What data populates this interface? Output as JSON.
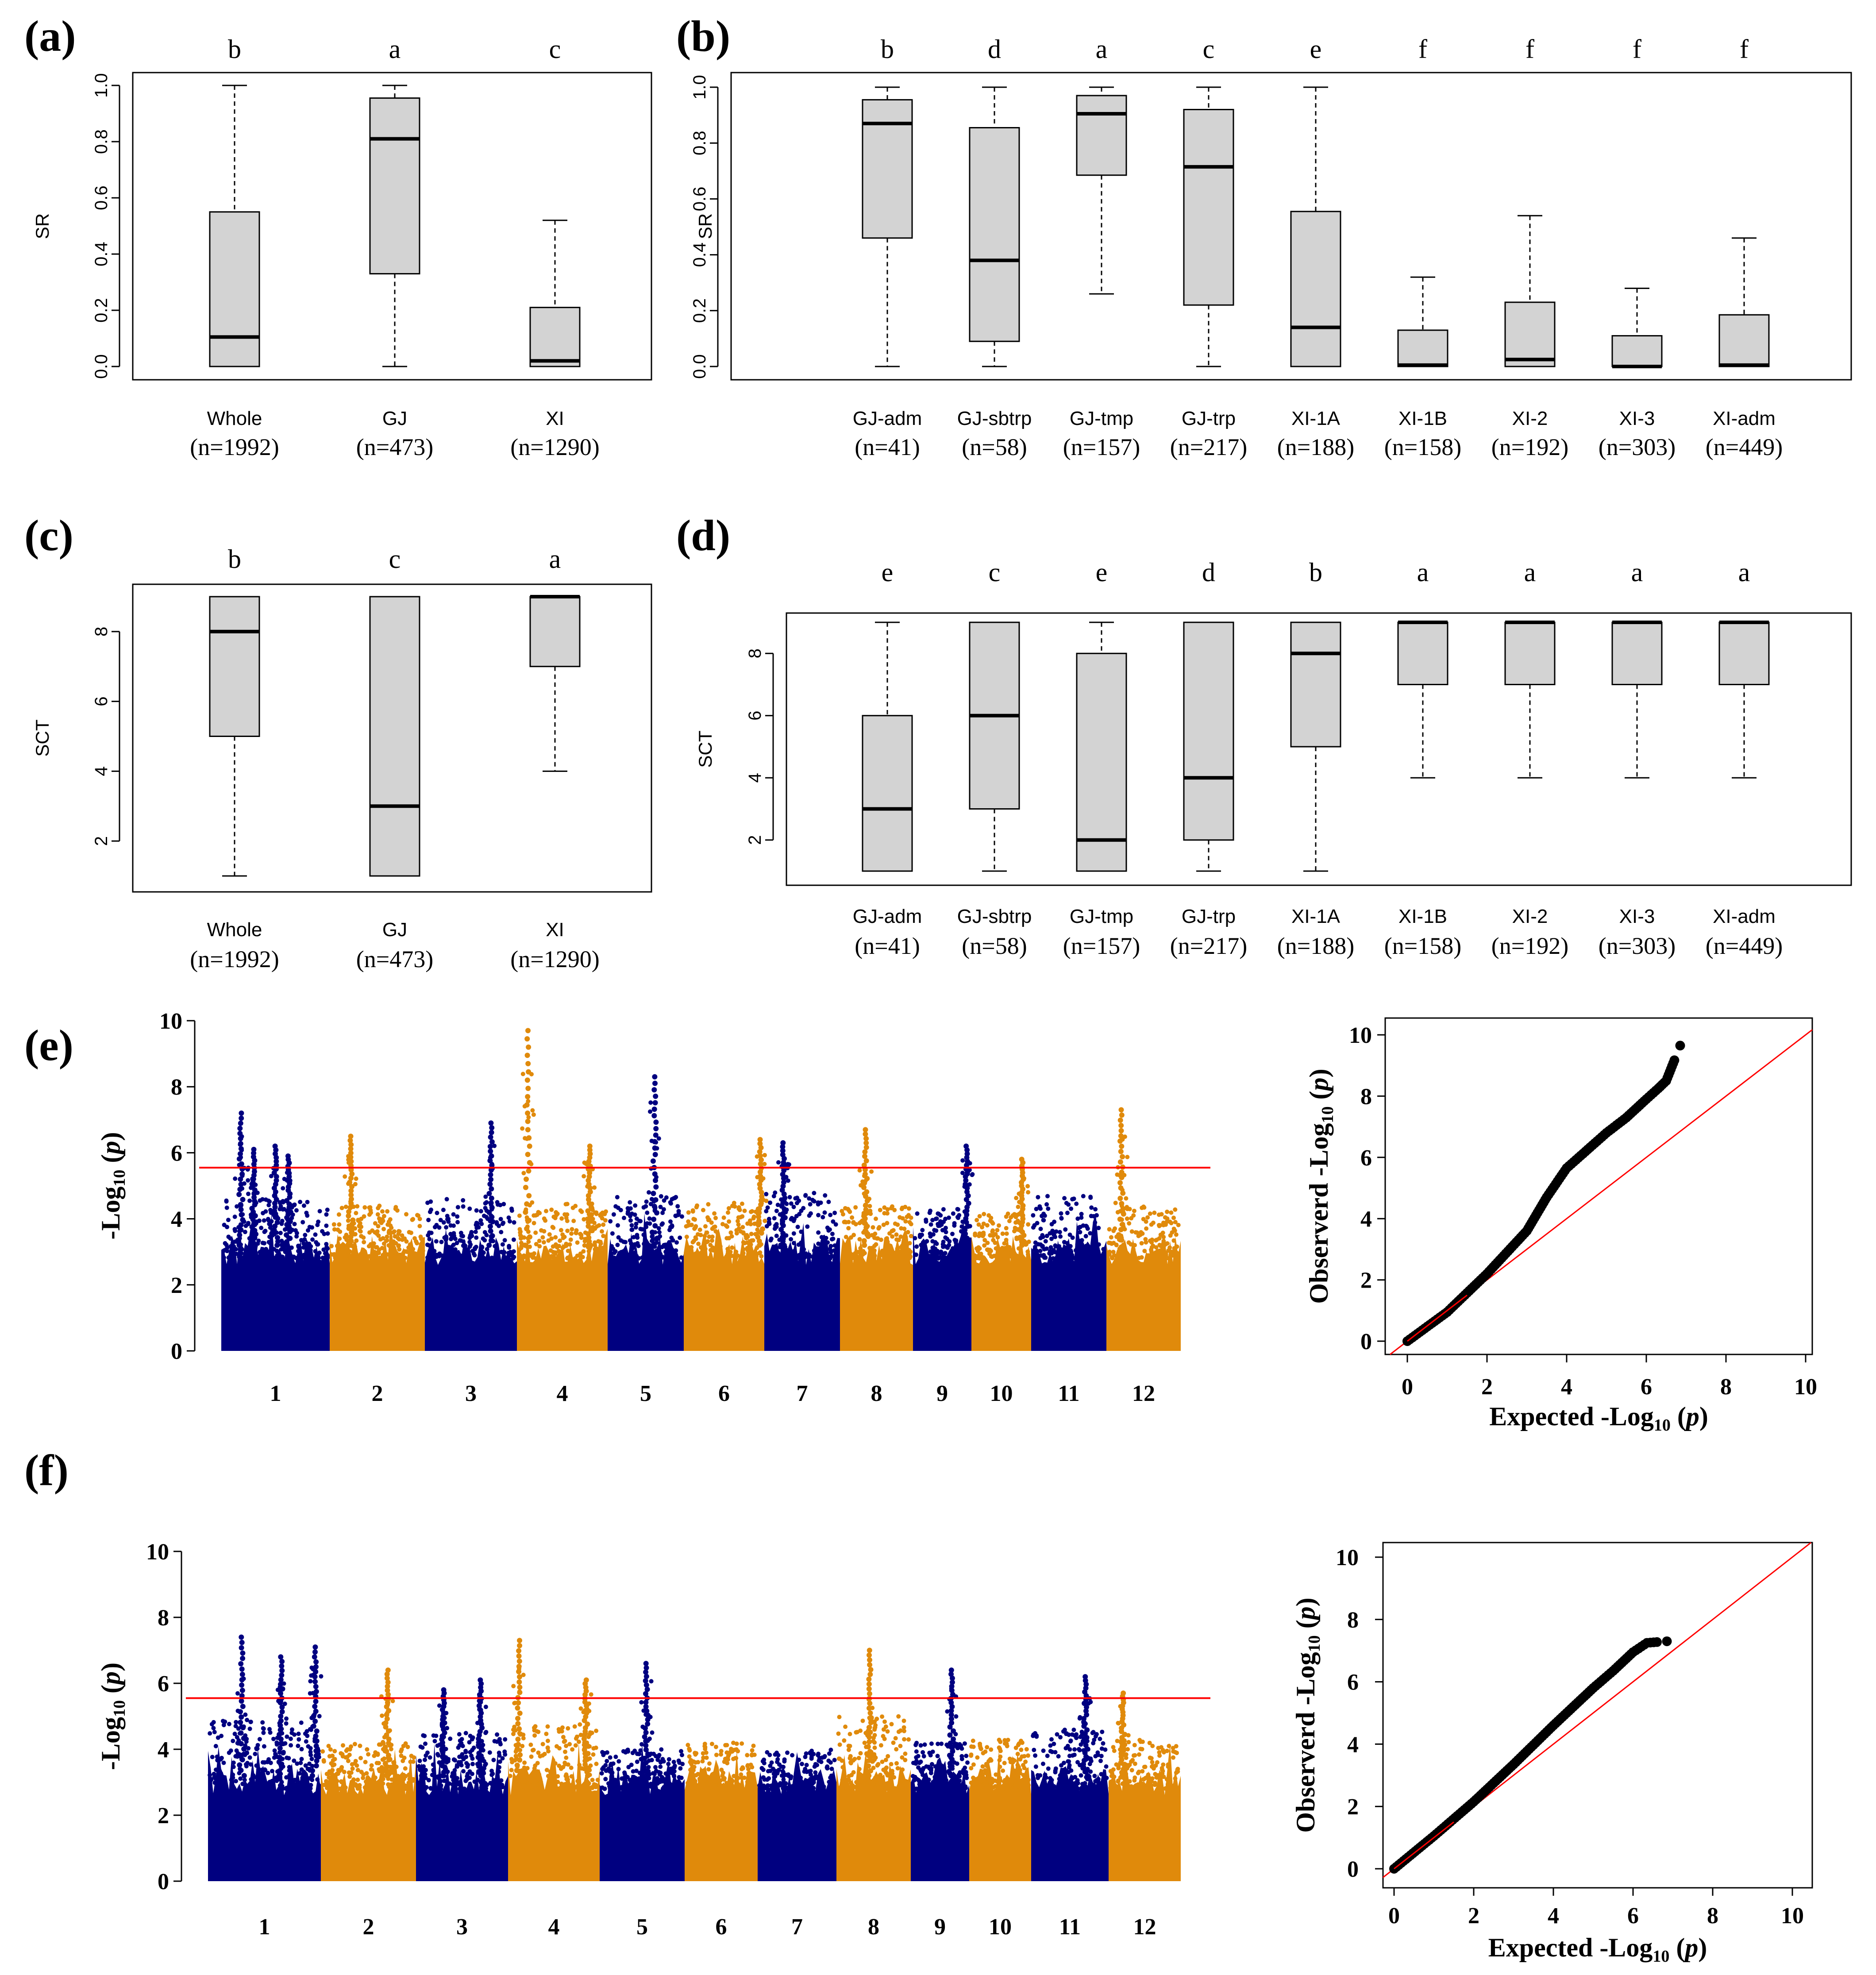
{
  "chart_data": [
    {
      "panel": "(a)",
      "type": "boxplot",
      "ylabel": "SR",
      "ylim": [
        0,
        1
      ],
      "yticks": [
        "0.0",
        "0.2",
        "0.4",
        "0.6",
        "0.8",
        "1.0"
      ],
      "categories": [
        "Whole",
        "GJ",
        "XI"
      ],
      "n_labels": [
        "(n=1992)",
        "(n=473)",
        "(n=1290)"
      ],
      "sig": [
        "b",
        "a",
        "c"
      ],
      "boxes": [
        {
          "low": 0.0,
          "q1": 0.0,
          "median": 0.105,
          "q3": 0.55,
          "high": 1.0
        },
        {
          "low": 0.0,
          "q1": 0.33,
          "median": 0.81,
          "q3": 0.955,
          "high": 1.0
        },
        {
          "low": 0.0,
          "q1": 0.0,
          "median": 0.02,
          "q3": 0.21,
          "high": 0.52
        }
      ]
    },
    {
      "panel": "(b)",
      "type": "boxplot",
      "ylabel": "SR",
      "ylim": [
        0,
        1
      ],
      "yticks": [
        "0.0",
        "0.2",
        "0.4",
        "0.6",
        "0.8",
        "1.0"
      ],
      "categories": [
        "GJ-adm",
        "GJ-sbtrp",
        "GJ-tmp",
        "GJ-trp",
        "XI-1A",
        "XI-1B",
        "XI-2",
        "XI-3",
        "XI-adm"
      ],
      "n_labels": [
        "(n=41)",
        "(n=58)",
        "(n=157)",
        "(n=217)",
        "(n=188)",
        "(n=158)",
        "(n=192)",
        "(n=303)",
        "(n=449)"
      ],
      "sig": [
        "b",
        "d",
        "a",
        "c",
        "e",
        "f",
        "f",
        "f",
        "f"
      ],
      "boxes": [
        {
          "low": 0.0,
          "q1": 0.46,
          "median": 0.87,
          "q3": 0.955,
          "high": 1.0
        },
        {
          "low": 0.0,
          "q1": 0.09,
          "median": 0.38,
          "q3": 0.855,
          "high": 1.0
        },
        {
          "low": 0.26,
          "q1": 0.685,
          "median": 0.905,
          "q3": 0.97,
          "high": 1.0
        },
        {
          "low": 0.0,
          "q1": 0.22,
          "median": 0.715,
          "q3": 0.92,
          "high": 1.0
        },
        {
          "low": 0.0,
          "q1": 0.0,
          "median": 0.14,
          "q3": 0.555,
          "high": 1.0
        },
        {
          "low": 0.0,
          "q1": 0.0,
          "median": 0.005,
          "q3": 0.13,
          "high": 0.32
        },
        {
          "low": 0.0,
          "q1": 0.0,
          "median": 0.025,
          "q3": 0.23,
          "high": 0.54
        },
        {
          "low": 0.0,
          "q1": 0.0,
          "median": 0.0,
          "q3": 0.11,
          "high": 0.28
        },
        {
          "low": 0.0,
          "q1": 0.0,
          "median": 0.005,
          "q3": 0.185,
          "high": 0.46
        }
      ]
    },
    {
      "panel": "(c)",
      "type": "boxplot",
      "ylabel": "SCT",
      "ylim": [
        0.7,
        9.3
      ],
      "yticks": [
        "2",
        "4",
        "6",
        "8"
      ],
      "categories": [
        "Whole",
        "GJ",
        "XI"
      ],
      "n_labels": [
        "(n=1992)",
        "(n=473)",
        "(n=1290)"
      ],
      "sig": [
        "b",
        "c",
        "a"
      ],
      "boxes": [
        {
          "low": 1,
          "q1": 5,
          "median": 8,
          "q3": 9,
          "high": 9
        },
        {
          "low": 1,
          "q1": 1,
          "median": 3,
          "q3": 9,
          "high": 9
        },
        {
          "low": 4,
          "q1": 7,
          "median": 9,
          "q3": 9,
          "high": 9
        }
      ]
    },
    {
      "panel": "(d)",
      "type": "boxplot",
      "ylabel": "SCT",
      "ylim": [
        0.7,
        9.3
      ],
      "yticks": [
        "2",
        "4",
        "6",
        "8"
      ],
      "categories": [
        "GJ-adm",
        "GJ-sbtrp",
        "GJ-tmp",
        "GJ-trp",
        "XI-1A",
        "XI-1B",
        "XI-2",
        "XI-3",
        "XI-adm"
      ],
      "n_labels": [
        "(n=41)",
        "(n=58)",
        "(n=157)",
        "(n=217)",
        "(n=188)",
        "(n=158)",
        "(n=192)",
        "(n=303)",
        "(n=449)"
      ],
      "sig": [
        "e",
        "c",
        "e",
        "d",
        "b",
        "a",
        "a",
        "a",
        "a"
      ],
      "boxes": [
        {
          "low": 1,
          "q1": 1,
          "median": 3,
          "q3": 6,
          "high": 9
        },
        {
          "low": 1,
          "q1": 3,
          "median": 6,
          "q3": 9,
          "high": 9
        },
        {
          "low": 1,
          "q1": 1,
          "median": 2,
          "q3": 8,
          "high": 9
        },
        {
          "low": 1,
          "q1": 2,
          "median": 4,
          "q3": 9,
          "high": 9
        },
        {
          "low": 1,
          "q1": 5,
          "median": 8,
          "q3": 9,
          "high": 9
        },
        {
          "low": 4,
          "q1": 7,
          "median": 9,
          "q3": 9,
          "high": 9
        },
        {
          "low": 4,
          "q1": 7,
          "median": 9,
          "q3": 9,
          "high": 9
        },
        {
          "low": 4,
          "q1": 7,
          "median": 9,
          "q3": 9,
          "high": 9
        },
        {
          "low": 4,
          "q1": 7,
          "median": 9,
          "q3": 9,
          "high": 9
        }
      ]
    },
    {
      "panel": "(e)",
      "type": "manhattan",
      "ylim": [
        0,
        10
      ],
      "yticks": [
        "0",
        "2",
        "4",
        "6",
        "8",
        "10"
      ],
      "ylabel_main": "-Log",
      "ylabel_sub": "10",
      "ylabel_p": "p",
      "threshold": 5.55,
      "chromosomes": [
        "1",
        "2",
        "3",
        "4",
        "5",
        "6",
        "7",
        "8",
        "9",
        "10",
        "11",
        "12"
      ],
      "colors": [
        "#000080",
        "#e08a0b"
      ],
      "base_heights": [
        4.6,
        4.4,
        4.6,
        4.5,
        4.7,
        4.5,
        4.8,
        4.4,
        4.3,
        4.2,
        4.7,
        4.4
      ],
      "peaks": [
        {
          "chr": 1,
          "pos": 0.18,
          "value": 7.2
        },
        {
          "chr": 1,
          "pos": 0.3,
          "value": 6.1
        },
        {
          "chr": 1,
          "pos": 0.5,
          "value": 6.2
        },
        {
          "chr": 1,
          "pos": 0.62,
          "value": 5.9
        },
        {
          "chr": 2,
          "pos": 0.22,
          "value": 6.5
        },
        {
          "chr": 3,
          "pos": 0.72,
          "value": 6.9
        },
        {
          "chr": 4,
          "pos": 0.12,
          "value": 9.7
        },
        {
          "chr": 4,
          "pos": 0.8,
          "value": 6.2
        },
        {
          "chr": 5,
          "pos": 0.62,
          "value": 8.3
        },
        {
          "chr": 6,
          "pos": 0.95,
          "value": 6.4
        },
        {
          "chr": 7,
          "pos": 0.25,
          "value": 6.3
        },
        {
          "chr": 8,
          "pos": 0.35,
          "value": 6.7
        },
        {
          "chr": 9,
          "pos": 0.92,
          "value": 6.2
        },
        {
          "chr": 10,
          "pos": 0.85,
          "value": 5.8
        },
        {
          "chr": 12,
          "pos": 0.2,
          "value": 7.3
        }
      ]
    },
    {
      "panel": "(e)",
      "type": "qqplot",
      "xlim": [
        0,
        10
      ],
      "ylim": [
        0,
        10
      ],
      "ticks": [
        "0",
        "2",
        "4",
        "6",
        "8",
        "10"
      ],
      "xlabel_main": "Expected -Log",
      "ylabel_main": "Observerd -Log",
      "label_sub": "10",
      "label_p": "p",
      "curve": [
        [
          0,
          0
        ],
        [
          1,
          0.95
        ],
        [
          2,
          2.2
        ],
        [
          3,
          3.6
        ],
        [
          3.5,
          4.7
        ],
        [
          4,
          5.65
        ],
        [
          5,
          6.8
        ],
        [
          5.5,
          7.3
        ],
        [
          6,
          7.9
        ],
        [
          6.3,
          8.25
        ],
        [
          6.5,
          8.5
        ],
        [
          6.85,
          9.65
        ]
      ]
    },
    {
      "panel": "(f)",
      "type": "manhattan",
      "ylim": [
        0,
        10
      ],
      "yticks": [
        "0",
        "2",
        "4",
        "6",
        "8",
        "10"
      ],
      "ylabel_main": "-Log",
      "ylabel_sub": "10",
      "ylabel_p": "p",
      "threshold": 5.55,
      "chromosomes": [
        "1",
        "2",
        "3",
        "4",
        "5",
        "6",
        "7",
        "8",
        "9",
        "10",
        "11",
        "12"
      ],
      "colors": [
        "#000080",
        "#e08a0b"
      ],
      "base_heights": [
        4.9,
        4.2,
        4.5,
        4.7,
        4.0,
        4.2,
        4.0,
        5.0,
        4.2,
        4.3,
        4.6,
        4.3
      ],
      "peaks": [
        {
          "chr": 1,
          "pos": 0.3,
          "value": 7.4
        },
        {
          "chr": 1,
          "pos": 0.65,
          "value": 6.8
        },
        {
          "chr": 1,
          "pos": 0.95,
          "value": 7.1
        },
        {
          "chr": 2,
          "pos": 0.7,
          "value": 6.4
        },
        {
          "chr": 3,
          "pos": 0.3,
          "value": 5.8
        },
        {
          "chr": 3,
          "pos": 0.7,
          "value": 6.1
        },
        {
          "chr": 4,
          "pos": 0.12,
          "value": 7.3
        },
        {
          "chr": 4,
          "pos": 0.85,
          "value": 6.1
        },
        {
          "chr": 5,
          "pos": 0.55,
          "value": 6.6
        },
        {
          "chr": 8,
          "pos": 0.45,
          "value": 7.0
        },
        {
          "chr": 9,
          "pos": 0.7,
          "value": 6.4
        },
        {
          "chr": 11,
          "pos": 0.7,
          "value": 6.2
        },
        {
          "chr": 12,
          "pos": 0.2,
          "value": 5.7
        }
      ]
    },
    {
      "panel": "(f)",
      "type": "qqplot",
      "xlim": [
        0,
        10
      ],
      "ylim": [
        0,
        10
      ],
      "ticks": [
        "0",
        "2",
        "4",
        "6",
        "8",
        "10"
      ],
      "xlabel_main": "Expected -Log",
      "ylabel_main": "Observerd -Log",
      "label_sub": "10",
      "label_p": "p",
      "curve": [
        [
          0,
          0
        ],
        [
          1,
          1.05
        ],
        [
          2,
          2.15
        ],
        [
          3,
          3.35
        ],
        [
          4,
          4.6
        ],
        [
          5,
          5.8
        ],
        [
          5.5,
          6.35
        ],
        [
          6,
          6.95
        ],
        [
          6.35,
          7.25
        ],
        [
          6.85,
          7.3
        ]
      ]
    }
  ]
}
